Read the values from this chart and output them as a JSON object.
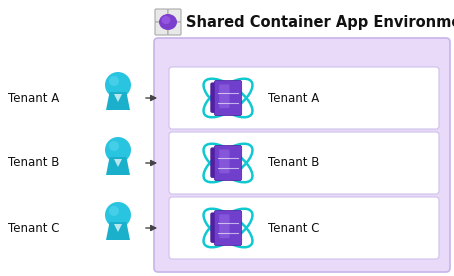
{
  "title": "Shared Container App Environment",
  "tenants": [
    "Tenant A",
    "Tenant B",
    "Tenant C"
  ],
  "bg_color": "#ffffff",
  "env_bg_color": "#e8daf8",
  "env_border_color": "#c8b4e8",
  "box_bg_color": "#ffffff",
  "box_border_color": "#d0c0ec",
  "person_color_top": "#29c4e0",
  "person_color_body": "#1ab0cc",
  "person_highlight": "#60d8f0",
  "arrow_color": "#444444",
  "text_color": "#111111",
  "title_color": "#111111",
  "icon_grid_color": "#b0b0b0",
  "icon_fill_color": "#e8e8e8",
  "icon_purple": "#7b3fcc",
  "container_purple": "#7040cc",
  "container_purple_light": "#9060e0",
  "container_purple_dark": "#5020a0",
  "container_cyan": "#10c8d0",
  "container_cyan2": "#08b0b8"
}
